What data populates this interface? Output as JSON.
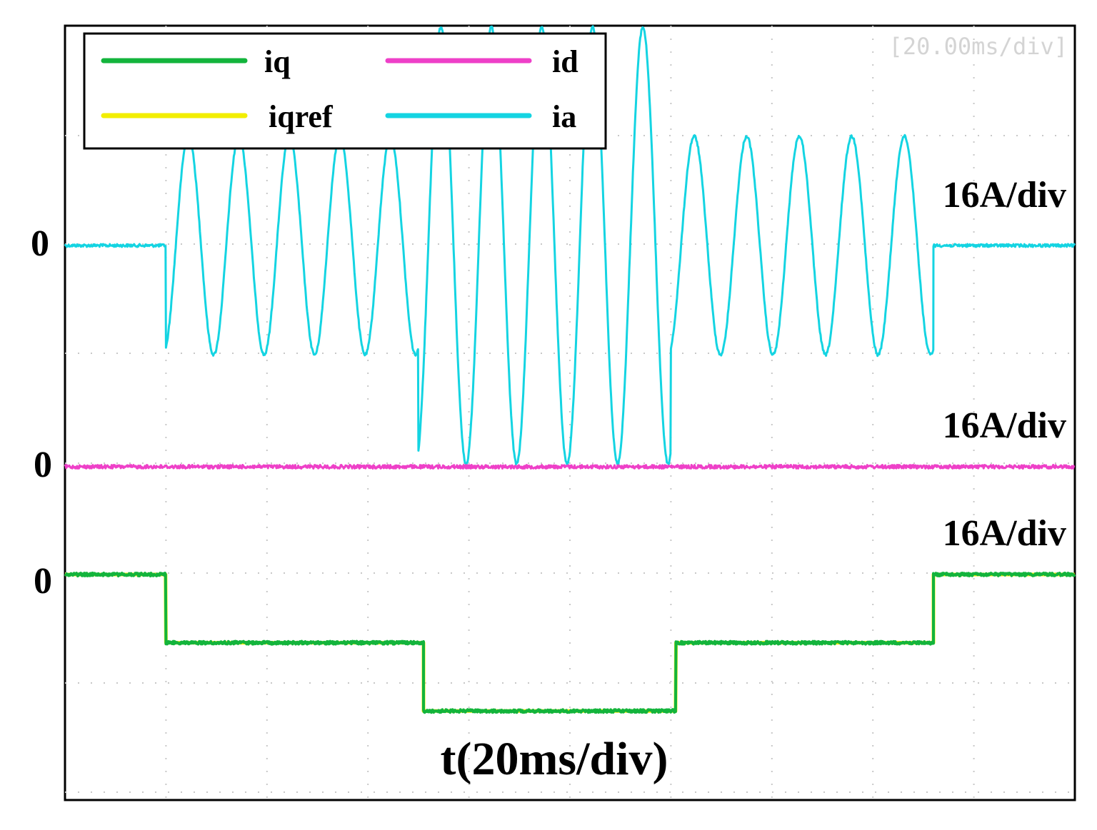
{
  "chart_data": {
    "type": "line",
    "timebase_label": "[20.00ms/div]",
    "xlabel": "t(20ms/div)",
    "x_unit": "ms",
    "x_range": [
      0,
      200
    ],
    "grid": true,
    "legend": {
      "placement": "top-left",
      "entries": [
        {
          "label": "iq",
          "color": "#13b43c"
        },
        {
          "label": "id",
          "color": "#ee40c8"
        },
        {
          "label": "iqref",
          "color": "#f2ee00"
        },
        {
          "label": "ia",
          "color": "#14d4e2"
        }
      ]
    },
    "channels": [
      {
        "name": "ia",
        "color": "#14d4e2",
        "scale_label": "16A/div",
        "zero_label": "0",
        "units_per_div": 16,
        "segments": [
          {
            "t_start": 0,
            "t_end": 20,
            "kind": "flat",
            "value": 0
          },
          {
            "t_start": 20,
            "t_end": 70,
            "kind": "sine",
            "amplitude": 16,
            "cycles": 5
          },
          {
            "t_start": 70,
            "t_end": 120,
            "kind": "sine",
            "amplitude": 32,
            "cycles": 5
          },
          {
            "t_start": 120,
            "t_end": 172,
            "kind": "sine",
            "amplitude": 16,
            "cycles": 5
          },
          {
            "t_start": 172,
            "t_end": 200,
            "kind": "flat",
            "value": 0
          }
        ]
      },
      {
        "name": "id",
        "color": "#ee40c8",
        "scale_label": "16A/div",
        "zero_label": "0",
        "units_per_div": 16,
        "segments": [
          {
            "t_start": 0,
            "t_end": 200,
            "kind": "flat",
            "value": 0
          }
        ]
      },
      {
        "name": "iqref",
        "color": "#f2ee00",
        "scale_label": "",
        "zero_label": "",
        "units_per_div": 16,
        "segments": [
          {
            "t_start": 0,
            "t_end": 20,
            "kind": "flat",
            "value": 0
          },
          {
            "t_start": 20,
            "t_end": 71,
            "kind": "flat",
            "value": -10
          },
          {
            "t_start": 71,
            "t_end": 121,
            "kind": "flat",
            "value": -20
          },
          {
            "t_start": 121,
            "t_end": 172,
            "kind": "flat",
            "value": -10
          },
          {
            "t_start": 172,
            "t_end": 200,
            "kind": "flat",
            "value": 0
          }
        ]
      },
      {
        "name": "iq",
        "color": "#13b43c",
        "scale_label": "16A/div",
        "zero_label": "0",
        "units_per_div": 16,
        "segments": [
          {
            "t_start": 0,
            "t_end": 20,
            "kind": "flat",
            "value": 0
          },
          {
            "t_start": 20,
            "t_end": 71,
            "kind": "flat",
            "value": -10
          },
          {
            "t_start": 71,
            "t_end": 121,
            "kind": "flat",
            "value": -20
          },
          {
            "t_start": 121,
            "t_end": 172,
            "kind": "flat",
            "value": -10
          },
          {
            "t_start": 172,
            "t_end": 200,
            "kind": "flat",
            "value": 0
          }
        ]
      }
    ]
  }
}
